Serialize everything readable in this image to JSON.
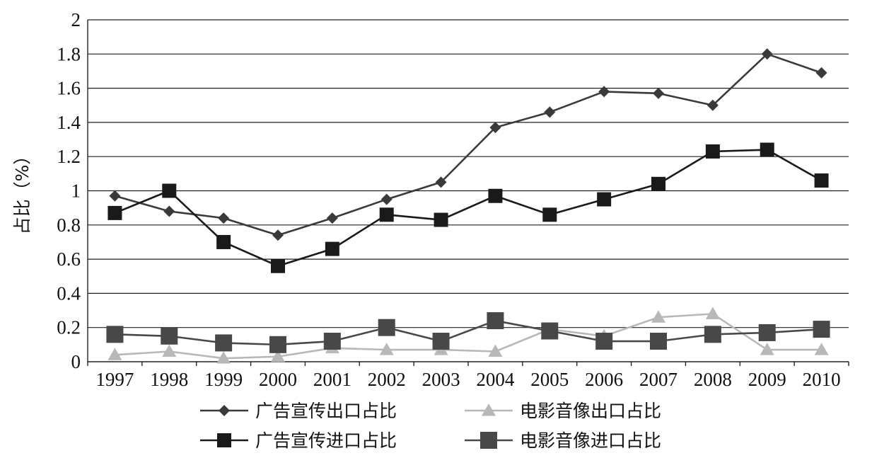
{
  "chart_data": {
    "type": "line",
    "title": "",
    "xlabel": "",
    "ylabel": "占比（%）",
    "categories": [
      "1997",
      "1998",
      "1999",
      "2000",
      "2001",
      "2002",
      "2003",
      "2004",
      "2005",
      "2006",
      "2007",
      "2008",
      "2009",
      "2010"
    ],
    "yticks": [
      "0",
      "0.2",
      "0.4",
      "0.6",
      "0.8",
      "1",
      "1.2",
      "1.4",
      "1.6",
      "1.8",
      "2"
    ],
    "ylim": [
      0,
      2
    ],
    "grid": true,
    "legend_position": "bottom",
    "series": [
      {
        "name": "广告宣传出口占比",
        "marker": "diamond",
        "color": "#3a3a3a",
        "values": [
          0.97,
          0.88,
          0.84,
          0.74,
          0.84,
          0.95,
          1.05,
          1.37,
          1.46,
          1.58,
          1.57,
          1.5,
          1.8,
          1.69
        ]
      },
      {
        "name": "电影音像出口占比",
        "marker": "triangle",
        "color": "#b8b8b8",
        "values": [
          0.04,
          0.06,
          0.02,
          0.03,
          0.08,
          0.07,
          0.07,
          0.06,
          0.19,
          0.15,
          0.26,
          0.28,
          0.07,
          0.07
        ]
      },
      {
        "name": "广告宣传进口占比",
        "marker": "square",
        "color": "#1a1a1a",
        "values": [
          0.87,
          1.0,
          0.7,
          0.56,
          0.66,
          0.86,
          0.83,
          0.97,
          0.86,
          0.95,
          1.04,
          1.23,
          1.24,
          1.06
        ]
      },
      {
        "name": "电影音像进口占比",
        "marker": "square-large",
        "color": "#484848",
        "values": [
          0.16,
          0.15,
          0.11,
          0.1,
          0.12,
          0.2,
          0.12,
          0.24,
          0.18,
          0.12,
          0.12,
          0.16,
          0.17,
          0.19
        ]
      }
    ]
  }
}
